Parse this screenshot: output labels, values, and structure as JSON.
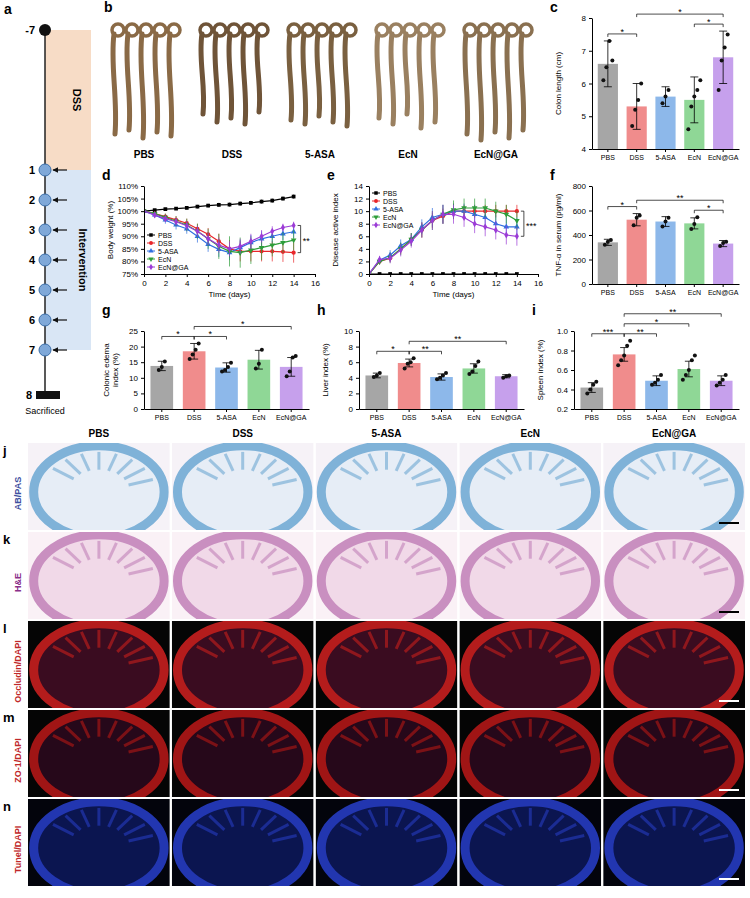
{
  "timeline": {
    "panel": "a",
    "start": "-7",
    "phase1": "DSS",
    "phase2": "Intervention",
    "days": [
      "1",
      "2",
      "3",
      "4",
      "5",
      "6",
      "7"
    ],
    "end": "8",
    "end_label": "Sacrificed"
  },
  "photos": {
    "panel": "b",
    "groups": [
      "PBS",
      "DSS",
      "5-ASA",
      "EcN",
      "EcN@GA"
    ]
  },
  "histology": {
    "groups": [
      "PBS",
      "DSS",
      "5-ASA",
      "EcN",
      "EcN@GA"
    ],
    "rows": [
      {
        "panel": "j",
        "stain": "AB/PAS"
      },
      {
        "panel": "k",
        "stain": "H&E"
      },
      {
        "panel": "l",
        "stain": "Occludin/DAPI"
      },
      {
        "panel": "m",
        "stain": "ZO-1/DAPI"
      },
      {
        "panel": "n",
        "stain": "Tunel/DAPI"
      }
    ]
  },
  "chart_data": [
    {
      "panel": "c",
      "type": "bar",
      "categories": [
        "PBS",
        "DSS",
        "5-ASA",
        "EcN",
        "EcN@GA"
      ],
      "values": [
        6.6,
        5.3,
        5.6,
        5.5,
        6.8
      ],
      "errors": [
        0.7,
        0.7,
        0.3,
        0.7,
        0.8
      ],
      "points": [
        [
          6.1,
          6.5,
          7.3,
          6.7
        ],
        [
          4.7,
          5.2,
          5.5,
          6.0
        ],
        [
          5.4,
          5.6,
          5.8
        ],
        [
          4.6,
          5.3,
          5.6,
          5.8,
          6.1
        ],
        [
          5.8,
          6.7,
          7.1,
          7.5
        ]
      ],
      "colors": [
        "#a6a6a6",
        "#f08c8c",
        "#8db8ea",
        "#8fd796",
        "#c6a0ec"
      ],
      "y_label": "Colon length (cm)",
      "ylim": [
        4,
        8
      ],
      "yticks": [
        4,
        5,
        6,
        7,
        8
      ],
      "significance": [
        {
          "from": "EcN",
          "to": "EcN@GA",
          "label": "*"
        },
        {
          "from": "PBS",
          "to": "DSS",
          "label": "*"
        },
        {
          "from": "DSS",
          "to": "EcN@GA",
          "label": "*"
        }
      ]
    },
    {
      "panel": "d",
      "type": "line",
      "x": [
        0,
        1,
        2,
        3,
        4,
        5,
        6,
        7,
        8,
        9,
        10,
        11,
        12,
        13,
        14
      ],
      "x_label": "Time (days)",
      "y_label": "Body weight (%)",
      "xlim": [
        0,
        16
      ],
      "xticks": [
        0,
        2,
        4,
        6,
        8,
        10,
        12,
        14,
        16
      ],
      "ylim": [
        75,
        110
      ],
      "yticks": [
        {
          "value": 75,
          "label": "75%"
        },
        {
          "value": 80,
          "label": "80%"
        },
        {
          "value": 85,
          "label": "85%"
        },
        {
          "value": 90,
          "label": "90%"
        },
        {
          "value": 95,
          "label": "95%"
        },
        {
          "value": 100,
          "label": "100%"
        },
        {
          "value": 105,
          "label": "105%"
        },
        {
          "value": 110,
          "label": "110%"
        }
      ],
      "legend": "lower left",
      "series": [
        {
          "name": "PBS",
          "color": "#000000",
          "marker": "square",
          "values": [
            100,
            100.4,
            100.8,
            101,
            101.3,
            101.8,
            102.2,
            102.5,
            102.6,
            103,
            103.3,
            103.8,
            104.2,
            105,
            105.8
          ],
          "errors": [
            0,
            0.4,
            0.5,
            0.6,
            0.6,
            0.7,
            0.7,
            0.8,
            0.8,
            0.8,
            0.8,
            0.8,
            0.8,
            0.8,
            0.8
          ]
        },
        {
          "name": "DSS",
          "color": "#e8262a",
          "marker": "circle",
          "values": [
            100,
            99,
            97.8,
            96.5,
            95.2,
            93,
            90.8,
            88,
            85,
            84,
            84,
            84,
            84,
            83.8,
            83.5
          ],
          "errors": [
            0,
            1,
            1.2,
            1.5,
            1.8,
            2,
            2.5,
            3,
            3.5,
            4,
            4,
            4,
            4,
            4,
            4
          ]
        },
        {
          "name": "5-ASA",
          "color": "#2f6fe0",
          "marker": "triangle",
          "values": [
            100,
            98.5,
            96.5,
            94.5,
            93,
            90,
            86.8,
            84.8,
            83.5,
            85.5,
            87.5,
            89,
            90,
            91,
            91.8
          ],
          "errors": [
            0,
            1,
            1.5,
            1.8,
            2,
            2.5,
            3,
            3,
            3,
            3,
            3,
            3,
            2.5,
            2.5,
            2.5
          ]
        },
        {
          "name": "EcN",
          "color": "#2e9e3a",
          "marker": "triangle-down",
          "values": [
            100,
            99,
            97.5,
            96,
            94.5,
            92,
            89,
            86,
            84,
            83.5,
            84.5,
            85.5,
            86.5,
            87.5,
            88.5
          ],
          "errors": [
            0,
            1,
            1.5,
            2,
            2.5,
            3,
            4,
            5,
            6,
            6,
            5.5,
            5,
            4.5,
            4,
            4
          ]
        },
        {
          "name": "EcN@GA",
          "color": "#9b3bd6",
          "marker": "diamond",
          "values": [
            100,
            98.5,
            97,
            95.8,
            94.2,
            92,
            89,
            86.5,
            85,
            86,
            88,
            90,
            92,
            93.5,
            94.3
          ],
          "errors": [
            0,
            1,
            1.2,
            1.5,
            1.8,
            2.2,
            2.5,
            3,
            3,
            3,
            3,
            2.5,
            2,
            1.5,
            1.5
          ]
        }
      ],
      "significance": [
        {
          "from": "DSS",
          "to": "EcN@GA",
          "label": "**"
        }
      ]
    },
    {
      "panel": "e",
      "type": "line",
      "x": [
        0,
        1,
        2,
        3,
        4,
        5,
        6,
        7,
        8,
        9,
        10,
        11,
        12,
        13,
        14
      ],
      "x_label": "Time (days)",
      "y_label": "Disease active index",
      "xlim": [
        0,
        16
      ],
      "xticks": [
        0,
        2,
        4,
        6,
        8,
        10,
        12,
        14,
        16
      ],
      "ylim": [
        0,
        14
      ],
      "yticks": [
        0,
        2,
        4,
        6,
        8,
        10,
        12,
        14
      ],
      "legend": "upper left",
      "series": [
        {
          "name": "PBS",
          "color": "#000000",
          "marker": "square",
          "values": [
            0,
            0,
            0,
            0,
            0,
            0,
            0,
            0,
            0,
            0,
            0,
            0,
            0,
            0,
            0
          ],
          "errors": [
            0,
            0,
            0,
            0,
            0,
            0,
            0,
            0,
            0,
            0,
            0,
            0,
            0,
            0,
            0
          ]
        },
        {
          "name": "DSS",
          "color": "#e8262a",
          "marker": "circle",
          "values": [
            0,
            2,
            2.5,
            4,
            5.5,
            7,
            8.5,
            9.2,
            10,
            10,
            10,
            10,
            10,
            10,
            10
          ],
          "errors": [
            0,
            0.5,
            0.6,
            0.8,
            1,
            1.2,
            1.2,
            1.2,
            1.2,
            1,
            1,
            1,
            1,
            1,
            1
          ]
        },
        {
          "name": "5-ASA",
          "color": "#2f6fe0",
          "marker": "triangle",
          "values": [
            0,
            2.2,
            3,
            4.5,
            5.5,
            7.5,
            9,
            9.5,
            10,
            10,
            9.5,
            9,
            8,
            7.5,
            7.5
          ],
          "errors": [
            0,
            0.6,
            0.8,
            1,
            1,
            1.2,
            1.5,
            1.5,
            1.2,
            1.2,
            1.5,
            1.5,
            1.5,
            1.5,
            1.5
          ]
        },
        {
          "name": "EcN",
          "color": "#2e9e3a",
          "marker": "triangle-down",
          "values": [
            0,
            2,
            2.6,
            4,
            5.5,
            7,
            8.5,
            9.5,
            10.2,
            10.5,
            10.5,
            10.5,
            10,
            9.5,
            8.5
          ],
          "errors": [
            0,
            0.5,
            0.8,
            1,
            1,
            1.2,
            1.5,
            1.5,
            1.5,
            1.5,
            1.5,
            1.5,
            1.5,
            1.5,
            1.5
          ]
        },
        {
          "name": "EcN@GA",
          "color": "#9b3bd6",
          "marker": "diamond",
          "values": [
            0,
            2.3,
            2.5,
            3.8,
            5.2,
            7,
            8.5,
            9.5,
            9.5,
            9,
            8,
            7.5,
            7,
            6.2,
            6
          ],
          "errors": [
            0,
            0.6,
            0.8,
            1,
            1,
            1.2,
            1.5,
            1.5,
            1.5,
            1.5,
            1.5,
            1.5,
            1.5,
            1.5,
            1.5
          ]
        }
      ],
      "significance": [
        {
          "from": "DSS",
          "to": "EcN@GA",
          "label": "***"
        }
      ]
    },
    {
      "panel": "f",
      "type": "bar",
      "categories": [
        "PBS",
        "DSS",
        "5-ASA",
        "EcN",
        "EcN@GA"
      ],
      "values": [
        340,
        525,
        510,
        495,
        330
      ],
      "errors": [
        25,
        50,
        40,
        45,
        25
      ],
      "points": [
        [
          320,
          345,
          360
        ],
        [
          480,
          540,
          560
        ],
        [
          470,
          510,
          540
        ],
        [
          450,
          490,
          545
        ],
        [
          310,
          335,
          345
        ]
      ],
      "colors": [
        "#a6a6a6",
        "#f08c8c",
        "#8db8ea",
        "#8fd796",
        "#c6a0ec"
      ],
      "y_label": "TNF-α in serum (pg/ml)",
      "ylim": [
        0,
        800
      ],
      "yticks": [
        0,
        200,
        400,
        600,
        800
      ],
      "significance": [
        {
          "from": "PBS",
          "to": "DSS",
          "label": "*"
        },
        {
          "from": "EcN",
          "to": "EcN@GA",
          "label": "*"
        },
        {
          "from": "DSS",
          "to": "EcN@GA",
          "label": "**"
        }
      ]
    },
    {
      "panel": "g",
      "type": "bar",
      "categories": [
        "PBS",
        "DSS",
        "5-ASA",
        "EcN",
        "EcN@GA"
      ],
      "values": [
        13.8,
        18.5,
        13.3,
        15.8,
        13.5
      ],
      "errors": [
        1.5,
        2.5,
        1.5,
        3,
        3
      ],
      "points": [
        [
          12.5,
          13.5,
          15.2
        ],
        [
          16,
          17.5,
          19,
          21
        ],
        [
          12,
          12.5,
          13.5,
          14.8
        ],
        [
          13,
          14.5,
          19
        ],
        [
          10.5,
          12,
          16.5,
          17
        ]
      ],
      "colors": [
        "#a6a6a6",
        "#f08c8c",
        "#8db8ea",
        "#8fd796",
        "#c6a0ec"
      ],
      "y_label": "Colonic edema index (%)",
      "ylim": [
        0,
        25
      ],
      "yticks": [
        0,
        5,
        10,
        15,
        20,
        25
      ],
      "significance": [
        {
          "from": "PBS",
          "to": "DSS",
          "label": "*"
        },
        {
          "from": "DSS",
          "to": "5-ASA",
          "label": "*"
        },
        {
          "from": "DSS",
          "to": "EcN@GA",
          "label": "*"
        }
      ]
    },
    {
      "panel": "h",
      "type": "bar",
      "categories": [
        "PBS",
        "DSS",
        "5-ASA",
        "EcN",
        "EcN@GA"
      ],
      "values": [
        4.3,
        5.9,
        4.1,
        5.2,
        4.2
      ],
      "errors": [
        0.3,
        0.5,
        0.4,
        0.6,
        0.2
      ],
      "points": [
        [
          4.1,
          4.3,
          4.6
        ],
        [
          5.2,
          5.8,
          6.0,
          6.5
        ],
        [
          3.8,
          4.0,
          4.3,
          4.6
        ],
        [
          4.5,
          4.8,
          5.5,
          6.1
        ],
        [
          4.0,
          4.2,
          4.3
        ]
      ],
      "colors": [
        "#a6a6a6",
        "#f08c8c",
        "#8db8ea",
        "#8fd796",
        "#c6a0ec"
      ],
      "y_label": "Liver index (%)",
      "ylim": [
        0,
        10
      ],
      "yticks": [
        0,
        2,
        4,
        6,
        8,
        10
      ],
      "significance": [
        {
          "from": "PBS",
          "to": "DSS",
          "label": "*"
        },
        {
          "from": "DSS",
          "to": "5-ASA",
          "label": "**"
        },
        {
          "from": "DSS",
          "to": "EcN@GA",
          "label": "**"
        }
      ]
    },
    {
      "panel": "i",
      "type": "bar",
      "categories": [
        "PBS",
        "DSS",
        "5-ASA",
        "EcN",
        "EcN@GA"
      ],
      "values": [
        0.42,
        0.76,
        0.49,
        0.61,
        0.49
      ],
      "errors": [
        0.05,
        0.07,
        0.05,
        0.08,
        0.05
      ],
      "points": [
        [
          0.36,
          0.4,
          0.45,
          0.48
        ],
        [
          0.65,
          0.7,
          0.75,
          0.85,
          0.9
        ],
        [
          0.45,
          0.47,
          0.5,
          0.55
        ],
        [
          0.5,
          0.55,
          0.6,
          0.7,
          0.75
        ],
        [
          0.44,
          0.47,
          0.5,
          0.55
        ]
      ],
      "colors": [
        "#a6a6a6",
        "#f08c8c",
        "#8db8ea",
        "#8fd796",
        "#c6a0ec"
      ],
      "y_label": "Spleen index (%)",
      "ylim": [
        0.2,
        1.0
      ],
      "yticks": [
        0.2,
        0.4,
        0.6,
        0.8,
        {
          "value": 1.0,
          "label": "1.0"
        }
      ],
      "significance": [
        {
          "from": "PBS",
          "to": "DSS",
          "label": "***"
        },
        {
          "from": "DSS",
          "to": "5-ASA",
          "label": "**"
        },
        {
          "from": "DSS",
          "to": "EcN",
          "label": "*"
        },
        {
          "from": "DSS",
          "to": "EcN@GA",
          "label": "**"
        }
      ]
    }
  ]
}
